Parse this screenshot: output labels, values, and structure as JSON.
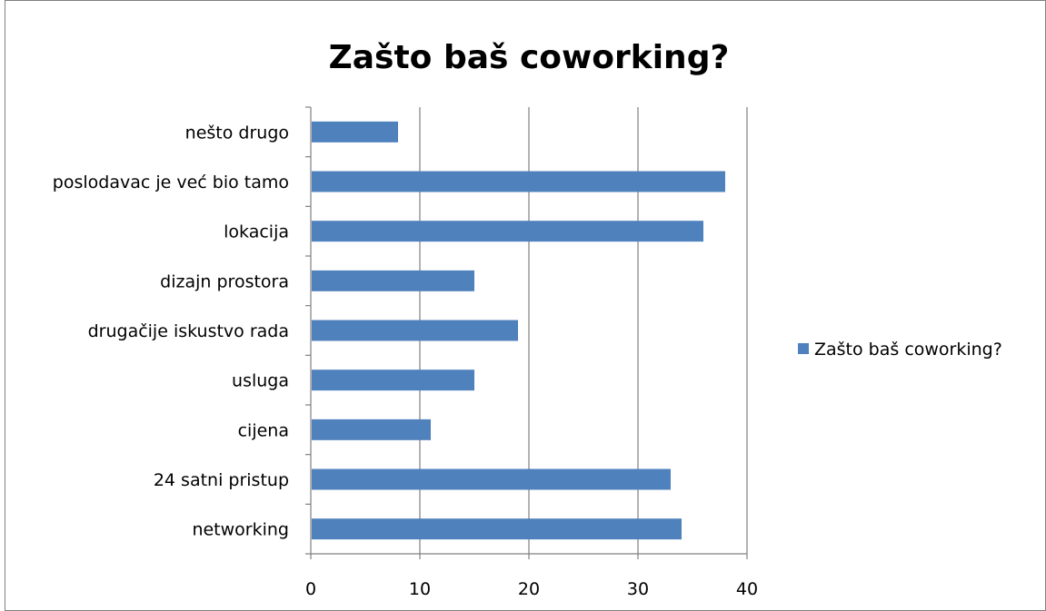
{
  "chart_data": {
    "type": "bar",
    "orientation": "horizontal",
    "title": "Zašto baš coworking?",
    "categories": [
      "networking",
      "24 satni pristup",
      "cijena",
      "usluga",
      "drugačije iskustvo rada",
      "dizajn prostora",
      "lokacija",
      "poslodavac je već bio tamo",
      "nešto drugo"
    ],
    "series": [
      {
        "name": "Zašto baš coworking?",
        "color": "#4f81bd",
        "values": [
          34,
          33,
          11,
          15,
          19,
          15,
          36,
          38,
          8
        ]
      }
    ],
    "xlabel": "",
    "ylabel": "",
    "xlim": [
      0,
      40
    ],
    "xticks": [
      0,
      10,
      20,
      30,
      40
    ],
    "xtick_labels": [
      "0",
      "10",
      "20",
      "30",
      "40"
    ],
    "grid": "vertical",
    "legend": "right"
  }
}
